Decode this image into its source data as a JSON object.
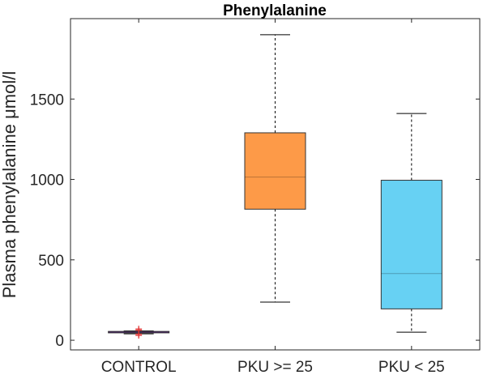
{
  "chart_data": {
    "type": "box",
    "title": "Phenylalanine",
    "xlabel": "",
    "ylabel": "Plasma phenylalanine μmol/l",
    "ylim": [
      -60,
      2000
    ],
    "yticks": [
      0,
      500,
      1000,
      1500
    ],
    "ytick_labels": [
      "0",
      "500",
      "1000",
      "1500"
    ],
    "grid": false,
    "categories": [
      "CONTROL",
      "PKU >= 25",
      "PKU < 25"
    ],
    "boxes": [
      {
        "category": "CONTROL",
        "min": 40,
        "q1": 46,
        "median": 50,
        "q3": 55,
        "max": 58,
        "outliers": [
          30,
          38,
          62,
          70
        ],
        "color": "#7030a0"
      },
      {
        "category": "PKU >= 25",
        "min": 237,
        "q1": 815,
        "median": 1015,
        "q3": 1290,
        "max": 1900,
        "outliers": [],
        "color": "#fd9a48"
      },
      {
        "category": "PKU < 25",
        "min": 50,
        "q1": 195,
        "median": 415,
        "q3": 995,
        "max": 1410,
        "outliers": [],
        "color": "#67d1f3"
      }
    ],
    "outlier_color": "#e03131",
    "axis_color": "#262626"
  }
}
